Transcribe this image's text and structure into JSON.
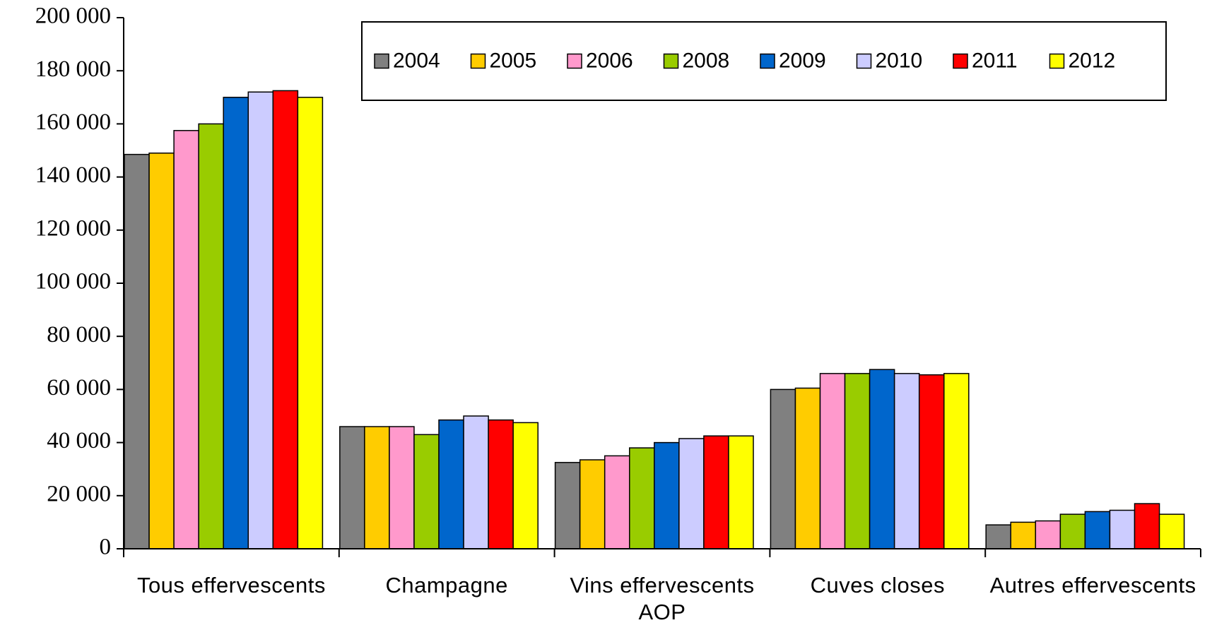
{
  "chart_data": {
    "type": "bar",
    "categories": [
      "Tous effervescents",
      "Champagne",
      "Vins effervescents AOP",
      "Cuves closes",
      "Autres effervescents"
    ],
    "series": [
      {
        "name": "2004",
        "color": "#808080",
        "values": [
          148500,
          46000,
          32500,
          60000,
          9000
        ]
      },
      {
        "name": "2005",
        "color": "#ffcc00",
        "values": [
          149000,
          46000,
          33500,
          60500,
          10000
        ]
      },
      {
        "name": "2006",
        "color": "#ff99cc",
        "values": [
          157500,
          46000,
          35000,
          66000,
          10500
        ]
      },
      {
        "name": "2008",
        "color": "#99cc00",
        "values": [
          160000,
          43000,
          38000,
          66000,
          13000
        ]
      },
      {
        "name": "2009",
        "color": "#0066cc",
        "values": [
          170000,
          48500,
          40000,
          67500,
          14000
        ]
      },
      {
        "name": "2010",
        "color": "#ccccff",
        "values": [
          172000,
          50000,
          41500,
          66000,
          14500
        ]
      },
      {
        "name": "2011",
        "color": "#ff0000",
        "values": [
          172500,
          48500,
          42500,
          65500,
          17000
        ]
      },
      {
        "name": "2012",
        "color": "#ffff00",
        "values": [
          170000,
          47500,
          42500,
          66000,
          13000
        ]
      }
    ],
    "ylim": [
      0,
      200000
    ],
    "yticks": [
      0,
      {
        "value": 20000,
        "label": "20 000"
      },
      {
        "value": 40000,
        "label": "40 000"
      },
      {
        "value": 60000,
        "label": "60 000"
      },
      {
        "value": 80000,
        "label": "80 000"
      },
      {
        "value": 100000,
        "label": "100 000"
      },
      {
        "value": 120000,
        "label": "120 000"
      },
      {
        "value": 140000,
        "label": "140 000"
      },
      {
        "value": 160000,
        "label": "160 000"
      },
      {
        "value": 180000,
        "label": "180 000"
      },
      {
        "value": 200000,
        "label": "200 000"
      }
    ],
    "legend": "top-right"
  }
}
